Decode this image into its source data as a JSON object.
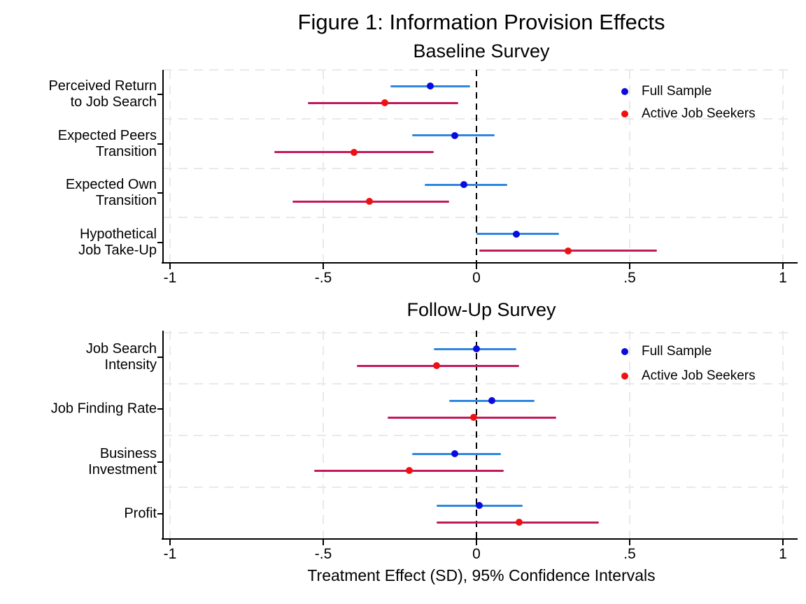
{
  "figure": {
    "title": "Figure 1: Information Provision Effects",
    "x_axis_title": "Treatment Effect (SD), 95% Confidence Intervals",
    "colors": {
      "full_sample_dot": "#0b0be0",
      "full_sample_line": "#2e86de",
      "active_seekers_dot": "#ee1111",
      "active_seekers_line": "#c2195b",
      "grid": "#e9e9e9",
      "axis": "#000000",
      "zero_line": "#000000"
    }
  },
  "chart_data": [
    {
      "type": "scatter",
      "subtype": "coefficient-plot-with-95ci",
      "title": "Baseline Survey",
      "xlim": [
        -1.02,
        1.03
      ],
      "xticks": [
        -1,
        -0.5,
        0,
        0.5,
        1
      ],
      "xtick_labels": [
        "-1",
        "-.5",
        "0",
        ".5",
        "1"
      ],
      "grid": true,
      "zero_reference_line": 0,
      "legend_position": "top-right",
      "legend": [
        "Full Sample",
        "Active Job Seekers"
      ],
      "categories": [
        [
          "Perceived Return",
          "to Job Search"
        ],
        [
          "Expected Peers",
          "Transition"
        ],
        [
          "Expected Own",
          "Transition"
        ],
        [
          "Hypothetical",
          "Job Take-Up"
        ]
      ],
      "series": [
        {
          "name": "Full Sample",
          "dot_color": "#0b0be0",
          "line_color": "#2e86de",
          "estimates": [
            -0.15,
            -0.07,
            -0.04,
            0.13
          ],
          "ci_lower": [
            -0.28,
            -0.21,
            -0.17,
            0.0
          ],
          "ci_upper": [
            -0.02,
            0.06,
            0.1,
            0.27
          ]
        },
        {
          "name": "Active Job Seekers",
          "dot_color": "#ee1111",
          "line_color": "#c2195b",
          "estimates": [
            -0.3,
            -0.4,
            -0.35,
            0.3
          ],
          "ci_lower": [
            -0.55,
            -0.66,
            -0.6,
            0.01
          ],
          "ci_upper": [
            -0.06,
            -0.14,
            -0.09,
            0.59
          ]
        }
      ]
    },
    {
      "type": "scatter",
      "subtype": "coefficient-plot-with-95ci",
      "title": "Follow-Up Survey",
      "xlim": [
        -1.02,
        1.03
      ],
      "xticks": [
        -1,
        -0.5,
        0,
        0.5,
        1
      ],
      "xtick_labels": [
        "-1",
        "-.5",
        "0",
        ".5",
        "1"
      ],
      "grid": true,
      "zero_reference_line": 0,
      "legend_position": "top-right",
      "legend": [
        "Full Sample",
        "Active Job Seekers"
      ],
      "categories": [
        [
          "Job Search",
          "Intensity"
        ],
        [
          "Job Finding Rate"
        ],
        [
          "Business",
          "Investment"
        ],
        [
          "Profit"
        ]
      ],
      "series": [
        {
          "name": "Full Sample",
          "dot_color": "#0b0be0",
          "line_color": "#2e86de",
          "estimates": [
            0.0,
            0.05,
            -0.07,
            0.01
          ],
          "ci_lower": [
            -0.14,
            -0.09,
            -0.21,
            -0.13
          ],
          "ci_upper": [
            0.13,
            0.19,
            0.08,
            0.15
          ]
        },
        {
          "name": "Active Job Seekers",
          "dot_color": "#ee1111",
          "line_color": "#c2195b",
          "estimates": [
            -0.13,
            -0.01,
            -0.22,
            0.14
          ],
          "ci_lower": [
            -0.39,
            -0.29,
            -0.53,
            -0.13
          ],
          "ci_upper": [
            0.14,
            0.26,
            0.09,
            0.4
          ]
        }
      ]
    }
  ]
}
